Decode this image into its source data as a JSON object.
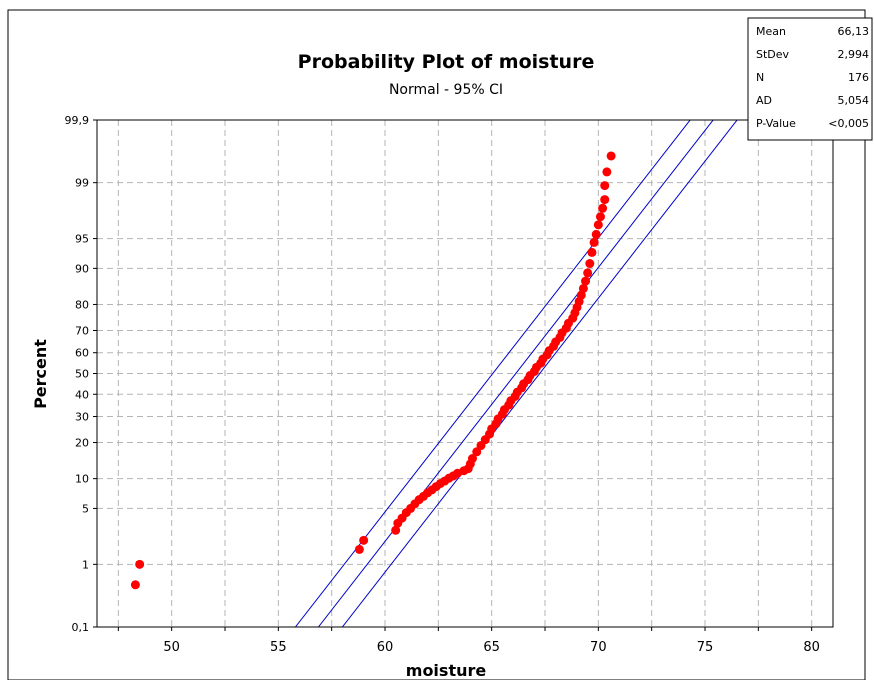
{
  "chart_data": {
    "type": "scatter",
    "title": "Probability Plot of moisture",
    "subtitle": "Normal - 95% CI",
    "xlabel": "moisture",
    "ylabel": "Percent",
    "x_ticks": [
      "50",
      "55",
      "60",
      "65",
      "70",
      "75",
      "80"
    ],
    "xlim": [
      46.5,
      81
    ],
    "y_scale": "normal-probability",
    "y_ticks": [
      "0,1",
      "1",
      "5",
      "10",
      "20",
      "30",
      "40",
      "50",
      "60",
      "70",
      "80",
      "90",
      "95",
      "99",
      "99,9"
    ],
    "ylim": [
      0.1,
      99.9
    ],
    "grid": true,
    "points": [
      {
        "x": 48.3,
        "y": 0.5
      },
      {
        "x": 48.5,
        "y": 1.0
      },
      {
        "x": 58.8,
        "y": 1.6
      },
      {
        "x": 59.0,
        "y": 2.1
      },
      {
        "x": 60.5,
        "y": 2.8
      },
      {
        "x": 60.6,
        "y": 3.4
      },
      {
        "x": 60.8,
        "y": 3.9
      },
      {
        "x": 61.0,
        "y": 4.5
      },
      {
        "x": 61.2,
        "y": 5.0
      },
      {
        "x": 61.4,
        "y": 5.6
      },
      {
        "x": 61.6,
        "y": 6.2
      },
      {
        "x": 61.8,
        "y": 6.7
      },
      {
        "x": 62.0,
        "y": 7.3
      },
      {
        "x": 62.2,
        "y": 7.8
      },
      {
        "x": 62.4,
        "y": 8.4
      },
      {
        "x": 62.6,
        "y": 9.0
      },
      {
        "x": 62.8,
        "y": 9.5
      },
      {
        "x": 63.0,
        "y": 10.1
      },
      {
        "x": 63.2,
        "y": 10.6
      },
      {
        "x": 63.4,
        "y": 11.2
      },
      {
        "x": 63.7,
        "y": 11.8
      },
      {
        "x": 63.9,
        "y": 12.3
      },
      {
        "x": 64.0,
        "y": 13.5
      },
      {
        "x": 64.1,
        "y": 15.0
      },
      {
        "x": 64.3,
        "y": 17.0
      },
      {
        "x": 64.5,
        "y": 19.0
      },
      {
        "x": 64.7,
        "y": 21.0
      },
      {
        "x": 64.9,
        "y": 23.0
      },
      {
        "x": 65.0,
        "y": 25.0
      },
      {
        "x": 65.2,
        "y": 27.0
      },
      {
        "x": 65.3,
        "y": 29.0
      },
      {
        "x": 65.5,
        "y": 31.0
      },
      {
        "x": 65.6,
        "y": 33.0
      },
      {
        "x": 65.8,
        "y": 35.0
      },
      {
        "x": 65.9,
        "y": 37.0
      },
      {
        "x": 66.1,
        "y": 39.0
      },
      {
        "x": 66.2,
        "y": 41.0
      },
      {
        "x": 66.4,
        "y": 43.0
      },
      {
        "x": 66.5,
        "y": 45.0
      },
      {
        "x": 66.7,
        "y": 47.0
      },
      {
        "x": 66.8,
        "y": 49.0
      },
      {
        "x": 67.0,
        "y": 51.0
      },
      {
        "x": 67.1,
        "y": 53.0
      },
      {
        "x": 67.3,
        "y": 55.0
      },
      {
        "x": 67.4,
        "y": 57.0
      },
      {
        "x": 67.6,
        "y": 59.0
      },
      {
        "x": 67.7,
        "y": 61.0
      },
      {
        "x": 67.9,
        "y": 63.0
      },
      {
        "x": 68.0,
        "y": 65.0
      },
      {
        "x": 68.2,
        "y": 67.0
      },
      {
        "x": 68.3,
        "y": 69.0
      },
      {
        "x": 68.5,
        "y": 71.0
      },
      {
        "x": 68.6,
        "y": 73.0
      },
      {
        "x": 68.8,
        "y": 75.0
      },
      {
        "x": 68.9,
        "y": 77.0
      },
      {
        "x": 69.0,
        "y": 79.0
      },
      {
        "x": 69.1,
        "y": 81.0
      },
      {
        "x": 69.2,
        "y": 83.0
      },
      {
        "x": 69.3,
        "y": 85.0
      },
      {
        "x": 69.4,
        "y": 87.0
      },
      {
        "x": 69.5,
        "y": 89.0
      },
      {
        "x": 69.6,
        "y": 91.0
      },
      {
        "x": 69.7,
        "y": 93.0
      },
      {
        "x": 69.8,
        "y": 94.5
      },
      {
        "x": 69.9,
        "y": 95.5
      },
      {
        "x": 70.0,
        "y": 96.5
      },
      {
        "x": 70.1,
        "y": 97.2
      },
      {
        "x": 70.2,
        "y": 97.8
      },
      {
        "x": 70.3,
        "y": 98.3
      },
      {
        "x": 70.3,
        "y": 98.9
      },
      {
        "x": 70.4,
        "y": 99.3
      },
      {
        "x": 70.6,
        "y": 99.6
      }
    ],
    "fit_lines": {
      "mean": 66.13,
      "stdev": 2.994,
      "ci_lower_x_at_0_1": 55.8,
      "ci_upper_x_at_0_1": 58.0
    },
    "stats_table": [
      {
        "label": "Mean",
        "value": "66,13"
      },
      {
        "label": "StDev",
        "value": "2,994"
      },
      {
        "label": "N",
        "value": "176"
      },
      {
        "label": "AD",
        "value": "5,054"
      },
      {
        "label": "P-Value",
        "value": "<0,005"
      }
    ],
    "colors": {
      "points": "#ff0000",
      "fit_line": "#0000cc",
      "grid": "#b5b5b5",
      "axis": "#000000"
    }
  }
}
